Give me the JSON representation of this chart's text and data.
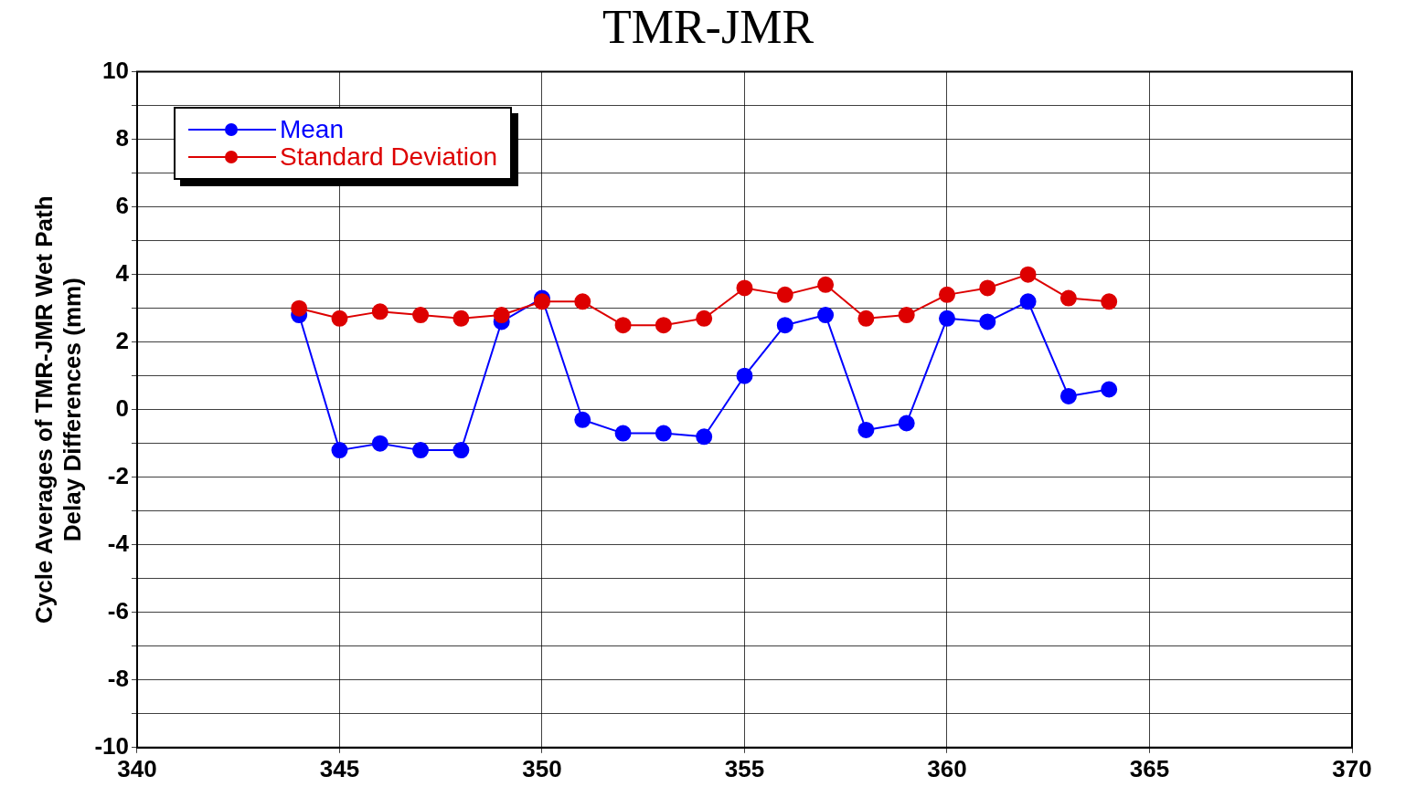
{
  "chart_data": {
    "type": "line",
    "title": "TMR-JMR",
    "ylabel": "Cycle Averages of TMR-JMR Wet Path\nDelay Differences (mm)",
    "x": [
      344,
      345,
      346,
      347,
      348,
      349,
      350,
      351,
      352,
      353,
      354,
      355,
      356,
      357,
      358,
      359,
      360,
      361,
      362,
      363,
      364
    ],
    "series": [
      {
        "name": "Mean",
        "color": "#0000ff",
        "values": [
          2.8,
          -1.2,
          -1.0,
          -1.2,
          -1.2,
          2.6,
          3.3,
          -0.3,
          -0.7,
          -0.7,
          -0.8,
          1.0,
          2.5,
          2.8,
          -0.6,
          -0.4,
          2.7,
          2.6,
          3.2,
          0.4,
          0.6
        ]
      },
      {
        "name": "Standard Deviation",
        "color": "#dd0000",
        "values": [
          3.0,
          2.7,
          2.9,
          2.8,
          2.7,
          2.8,
          3.2,
          3.2,
          2.5,
          2.5,
          2.7,
          3.6,
          3.4,
          3.7,
          2.7,
          2.8,
          3.4,
          3.6,
          4.0,
          3.3,
          3.2
        ]
      }
    ],
    "xlim": [
      340,
      370
    ],
    "xticks": [
      340,
      345,
      350,
      355,
      360,
      365,
      370
    ],
    "ylim": [
      -10,
      10
    ],
    "yticks": [
      -10,
      {
        "value": -9,
        "label": null
      },
      -8,
      {
        "value": -7,
        "label": null
      },
      -6,
      {
        "value": -5,
        "label": null
      },
      -4,
      {
        "value": -3,
        "label": null
      },
      -2,
      {
        "value": -1,
        "label": null
      },
      0,
      {
        "value": 1,
        "label": null
      },
      2,
      {
        "value": 3,
        "label": null
      },
      4,
      {
        "value": 5,
        "label": null
      },
      6,
      {
        "value": 7,
        "label": null
      },
      8,
      {
        "value": 9,
        "label": null
      },
      10
    ],
    "grid": true,
    "legend": "top left",
    "marker": "circle",
    "line_style": "solid"
  }
}
